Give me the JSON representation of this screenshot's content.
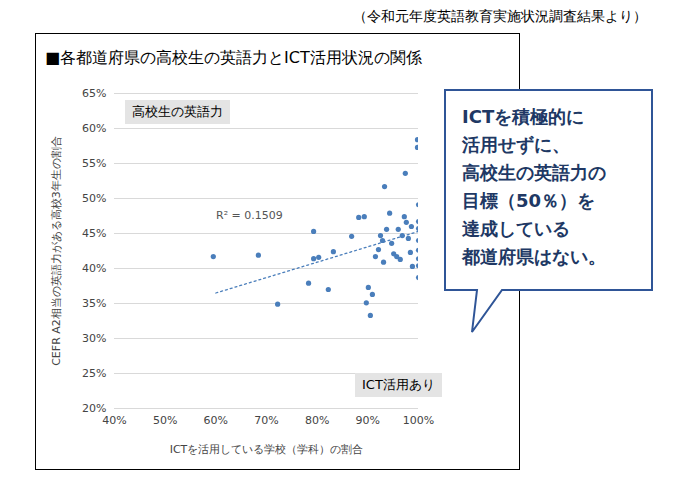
{
  "chart_data": {
    "type": "scatter",
    "caption": "（令和元年度英語教育実施状況調査結果より）",
    "title": "■各都道府県の高校生の英語力とICT活用状況の関係",
    "x_label": "ICTを活用している学校（学科）の割合",
    "y_label": "CEFR A2相当の英語力がある高校3年生の割合",
    "x": [
      59.5,
      68.4,
      72.2,
      78.3,
      79.3,
      79.3,
      80.3,
      82.2,
      83.2,
      86.8,
      88.2,
      89.3,
      89.7,
      90.1,
      90.5,
      90.9,
      91.5,
      92.1,
      92.5,
      92.9,
      93.1,
      93.3,
      93.7,
      94.3,
      94.7,
      95.1,
      95.7,
      96.0,
      96.4,
      96.8,
      97.2,
      97.4,
      97.6,
      98.0,
      98.4,
      98.6,
      98.8,
      99.8,
      99.8,
      100,
      100,
      100,
      100,
      100,
      100,
      100,
      100
    ],
    "values": [
      41.7,
      41.9,
      34.9,
      37.9,
      45.3,
      41.4,
      41.6,
      37.0,
      42.4,
      44.6,
      47.3,
      47.4,
      35.1,
      37.3,
      33.3,
      36.3,
      41.7,
      42.7,
      44.7,
      44.0,
      40.9,
      51.7,
      45.6,
      47.9,
      43.6,
      42.1,
      41.7,
      45.6,
      41.3,
      44.7,
      47.4,
      53.6,
      46.6,
      44.3,
      42.3,
      46.0,
      40.3,
      58.4,
      57.3,
      49.1,
      46.7,
      45.7,
      44.0,
      42.6,
      41.4,
      40.4,
      38.7
    ],
    "color": "#4a7ebb",
    "marker": "circle",
    "trendline": {
      "x": [
        60,
        100
      ],
      "values": [
        36.5,
        45.3
      ],
      "color": "#4a7ebb",
      "line_style": "dotted",
      "label": "R² = 0.1509"
    },
    "xlim": [
      40,
      100
    ],
    "xticks": [
      {
        "value": 40,
        "label": "40%"
      },
      {
        "value": 50,
        "label": "50%"
      },
      {
        "value": 60,
        "label": "60%"
      },
      {
        "value": 70,
        "label": "70%"
      },
      {
        "value": 80,
        "label": "80%"
      },
      {
        "value": 90,
        "label": "90%"
      },
      {
        "value": 100,
        "label": "100%"
      }
    ],
    "ylim": [
      20,
      65
    ],
    "yticks": [
      {
        "value": 20,
        "label": "20%"
      },
      {
        "value": 25,
        "label": "25%"
      },
      {
        "value": 30,
        "label": "30%"
      },
      {
        "value": 35,
        "label": "35%"
      },
      {
        "value": 40,
        "label": "40%"
      },
      {
        "value": 45,
        "label": "45%"
      },
      {
        "value": 50,
        "label": "50%"
      },
      {
        "value": 55,
        "label": "55%"
      },
      {
        "value": 60,
        "label": "60%"
      },
      {
        "value": 65,
        "label": "65%"
      }
    ],
    "grid": "y",
    "annotations": [
      "高校生の英語力",
      "ICT活用あり"
    ],
    "callout": [
      "ICTを積極的に",
      "活用せずに、",
      "高校生の英語力の",
      "目標（50％）を",
      "達成している",
      "都道府県はない。"
    ]
  }
}
